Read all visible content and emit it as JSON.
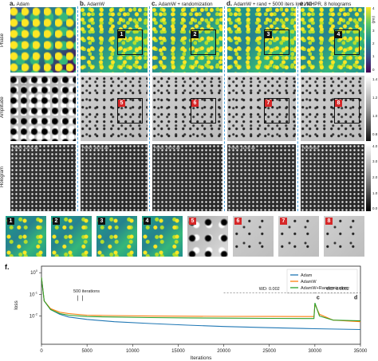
{
  "columns": [
    {
      "letter": "a.",
      "title": "Adam"
    },
    {
      "letter": "b.",
      "title": "AdamW"
    },
    {
      "letter": "c.",
      "title": "AdamW + randomization"
    },
    {
      "letter": "d.",
      "title": "AdamW + rand + 5000 iters low WD"
    },
    {
      "letter": "e.",
      "title": "MHPR, 8 holograms"
    }
  ],
  "rows": [
    "Phase",
    "Amplitude",
    "Hologram"
  ],
  "psnr": [
    "PSNR: 22.02 dB",
    "PSNR: 26.44 dB",
    "PSNR: 29.02 dB",
    "PSNR: 31.69 dB",
    "Reference"
  ],
  "roi_labels": [
    "1",
    "2",
    "3",
    "4"
  ],
  "amp_roi_labels": [
    "5",
    "6",
    "7",
    "8"
  ],
  "colorbars": {
    "phase": {
      "ticks": [
        "4",
        "3",
        "2",
        "1",
        "0"
      ],
      "label": "(rad)"
    },
    "amplitude": {
      "ticks": [
        "1.4",
        "1.2",
        "1.0",
        "0.8"
      ]
    },
    "hologram": {
      "ticks": [
        "4.0",
        "3.0",
        "2.0",
        "1.0",
        "0.0"
      ]
    }
  },
  "zoom_labels": [
    "1",
    "2",
    "3",
    "4",
    "5",
    "6",
    "7",
    "8"
  ],
  "plot": {
    "panel_letter": "f.",
    "ylabel": "loss",
    "xlabel": "Iterations",
    "yticks": [
      "10^0",
      "10^-1",
      "10^-2"
    ],
    "xticks": [
      "0",
      "5000",
      "10000",
      "15000",
      "20000",
      "25000",
      "30000",
      "35000"
    ],
    "annotations": {
      "iters": "500 iterations",
      "wd1": "WD: 0.002",
      "wd2": "WD: 0.0002",
      "c": "c",
      "d": "d"
    }
  },
  "chart_data": {
    "type": "line",
    "xlabel": "Iterations",
    "ylabel": "loss",
    "yscale": "log",
    "xlim": [
      0,
      35000
    ],
    "ylim": [
      0.0005,
      2
    ],
    "legend_position": "top-right",
    "series": [
      {
        "name": "Adam",
        "color": "#1f77b4",
        "x": [
          0,
          300,
          1000,
          2000,
          3000,
          5000,
          8000,
          12000,
          16000,
          20000,
          25000,
          30000,
          35000
        ],
        "y": [
          0.6,
          0.05,
          0.02,
          0.012,
          0.009,
          0.007,
          0.0055,
          0.0045,
          0.0038,
          0.0033,
          0.0029,
          0.0026,
          0.0024
        ]
      },
      {
        "name": "AdamW",
        "color": "#ff7f0e",
        "x": [
          0,
          300,
          1000,
          2000,
          3000,
          5000,
          8000,
          12000,
          16000,
          20000,
          25000,
          29900,
          30000,
          30500,
          32000,
          35000
        ],
        "y": [
          0.6,
          0.05,
          0.022,
          0.015,
          0.013,
          0.011,
          0.0105,
          0.01,
          0.0098,
          0.0097,
          0.0096,
          0.0095,
          0.035,
          0.012,
          0.0065,
          0.0055
        ]
      },
      {
        "name": "AdamW+Randomization",
        "color": "#2ca02c",
        "x": [
          0,
          300,
          1000,
          2000,
          3000,
          5000,
          8000,
          12000,
          16000,
          20000,
          25000,
          29900,
          30000,
          30500,
          32000,
          35000
        ],
        "y": [
          0.6,
          0.05,
          0.02,
          0.013,
          0.011,
          0.0095,
          0.009,
          0.0085,
          0.0082,
          0.008,
          0.0078,
          0.0077,
          0.04,
          0.01,
          0.0065,
          0.006
        ]
      }
    ]
  }
}
